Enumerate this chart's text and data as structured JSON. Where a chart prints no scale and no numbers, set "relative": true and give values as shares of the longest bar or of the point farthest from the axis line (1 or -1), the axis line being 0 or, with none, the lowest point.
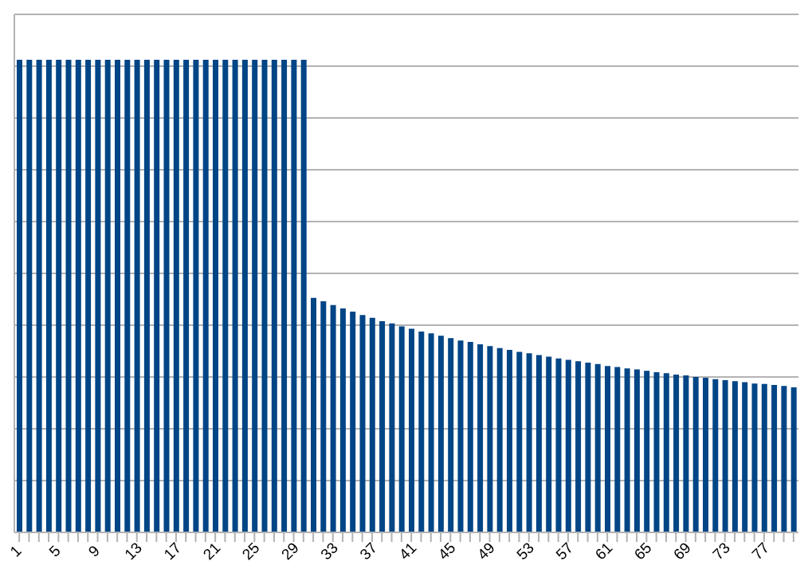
{
  "chart_data": {
    "type": "bar",
    "relative": true,
    "color": "#004586",
    "grid": "y",
    "categories": [
      "1",
      null,
      null,
      null,
      "5",
      null,
      null,
      null,
      "9",
      null,
      null,
      null,
      "13",
      null,
      null,
      null,
      "17",
      null,
      null,
      null,
      "21",
      null,
      null,
      null,
      "25",
      null,
      null,
      null,
      "29",
      null,
      null,
      null,
      "33",
      null,
      null,
      null,
      "37",
      null,
      null,
      null,
      "41",
      null,
      null,
      null,
      "45",
      null,
      null,
      null,
      "49",
      null,
      null,
      null,
      "53",
      null,
      null,
      null,
      "57",
      null,
      null,
      null,
      "61",
      null,
      null,
      null,
      "65",
      null,
      null,
      null,
      "69",
      null,
      null,
      null,
      "73",
      null,
      null,
      null,
      "77",
      null,
      null,
      null
    ],
    "values": [
      1,
      1,
      1,
      1,
      1,
      1,
      1,
      1,
      1,
      1,
      1,
      1,
      1,
      1,
      1,
      1,
      1,
      1,
      1,
      1,
      1,
      1,
      1,
      1,
      1,
      1,
      1,
      1,
      1,
      1,
      0.496,
      0.489,
      0.481,
      0.474,
      0.467,
      0.46,
      0.454,
      0.447,
      0.442,
      0.436,
      0.431,
      0.425,
      0.421,
      0.416,
      0.411,
      0.406,
      0.403,
      0.398,
      0.394,
      0.39,
      0.386,
      0.382,
      0.379,
      0.375,
      0.372,
      0.368,
      0.365,
      0.362,
      0.359,
      0.356,
      0.352,
      0.35,
      0.347,
      0.345,
      0.342,
      0.339,
      0.337,
      0.334,
      0.332,
      0.329,
      0.327,
      0.324,
      0.322,
      0.32,
      0.318,
      0.315,
      0.314,
      0.312,
      0.31,
      0.307
    ]
  }
}
